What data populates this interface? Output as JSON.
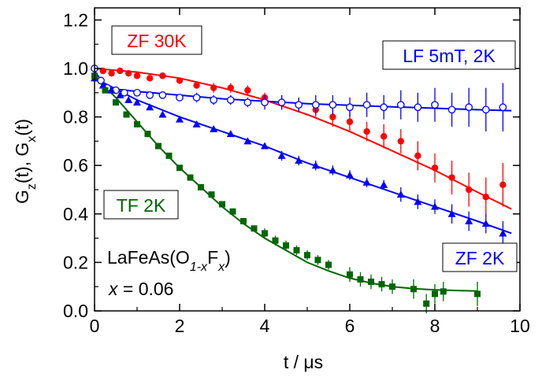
{
  "chart_data": {
    "type": "scatter",
    "xlabel": "t / μs",
    "ylabel": "G_z(t), G_x(t)",
    "xlim": [
      0,
      10
    ],
    "ylim": [
      0,
      1.25
    ],
    "x_ticks": [
      0,
      2,
      4,
      6,
      8,
      10
    ],
    "y_ticks": [
      0.0,
      0.2,
      0.4,
      0.6,
      0.8,
      1.0,
      1.2
    ],
    "x_tick_labels": [
      "0",
      "2",
      "4",
      "6",
      "8",
      "10"
    ],
    "y_tick_labels": [
      "0.0",
      "0.2",
      "0.4",
      "0.6",
      "0.8",
      "1.0",
      "1.2"
    ],
    "grid": false,
    "annotation": {
      "compound_line1": "LaFeAs(O",
      "compound_sub1": "1-x",
      "compound_mid": "F",
      "compound_sub2": "x",
      "compound_end": ")",
      "x_var": "x",
      "x_value": " = 0.06"
    },
    "series": [
      {
        "name": "ZF 30K",
        "color": "#ff0000",
        "marker": "circle-filled",
        "x": [
          0.0,
          0.2,
          0.4,
          0.6,
          0.8,
          1.0,
          1.3,
          1.6,
          2.0,
          2.4,
          2.8,
          3.2,
          3.6,
          4.0,
          4.4,
          4.8,
          5.2,
          5.6,
          6.0,
          6.4,
          6.8,
          7.2,
          7.6,
          8.0,
          8.4,
          8.8,
          9.2,
          9.6
        ],
        "y": [
          1.0,
          0.99,
          0.98,
          0.99,
          0.98,
          0.97,
          0.96,
          0.97,
          0.95,
          0.93,
          0.92,
          0.92,
          0.91,
          0.88,
          0.86,
          0.85,
          0.83,
          0.8,
          0.78,
          0.74,
          0.72,
          0.7,
          0.64,
          0.59,
          0.55,
          0.5,
          0.47,
          0.52
        ],
        "err": [
          0.01,
          0.01,
          0.01,
          0.01,
          0.01,
          0.01,
          0.01,
          0.01,
          0.01,
          0.01,
          0.02,
          0.02,
          0.02,
          0.02,
          0.03,
          0.03,
          0.03,
          0.04,
          0.04,
          0.04,
          0.05,
          0.05,
          0.06,
          0.06,
          0.07,
          0.07,
          0.08,
          0.09
        ],
        "fit": {
          "x": [
            0.0,
            1.0,
            2.0,
            3.0,
            4.0,
            5.0,
            6.0,
            7.0,
            8.0,
            9.0,
            9.8
          ],
          "y": [
            1.0,
            0.985,
            0.96,
            0.92,
            0.87,
            0.81,
            0.74,
            0.66,
            0.58,
            0.49,
            0.42
          ]
        }
      },
      {
        "name": "LF 5mT, 2K",
        "color": "#0000ff",
        "marker": "circle-open",
        "x": [
          0.0,
          0.15,
          0.3,
          0.5,
          0.7,
          1.0,
          1.3,
          1.6,
          2.0,
          2.4,
          2.8,
          3.2,
          3.6,
          4.0,
          4.4,
          4.8,
          5.2,
          5.6,
          6.0,
          6.4,
          6.8,
          7.2,
          7.6,
          8.0,
          8.4,
          8.8,
          9.2,
          9.6
        ],
        "y": [
          1.0,
          0.95,
          0.92,
          0.91,
          0.9,
          0.9,
          0.89,
          0.89,
          0.88,
          0.88,
          0.87,
          0.87,
          0.86,
          0.86,
          0.86,
          0.85,
          0.85,
          0.85,
          0.84,
          0.85,
          0.84,
          0.85,
          0.84,
          0.85,
          0.83,
          0.84,
          0.83,
          0.84
        ],
        "err": [
          0.01,
          0.01,
          0.01,
          0.01,
          0.01,
          0.01,
          0.01,
          0.01,
          0.01,
          0.02,
          0.02,
          0.02,
          0.02,
          0.03,
          0.03,
          0.03,
          0.04,
          0.04,
          0.04,
          0.05,
          0.05,
          0.06,
          0.06,
          0.07,
          0.07,
          0.08,
          0.09,
          0.1
        ],
        "fit": {
          "x": [
            0.0,
            0.2,
            0.5,
            1.0,
            2.0,
            3.0,
            4.0,
            5.0,
            6.0,
            7.0,
            8.0,
            9.0,
            9.8
          ],
          "y": [
            0.99,
            0.94,
            0.915,
            0.905,
            0.89,
            0.875,
            0.865,
            0.855,
            0.848,
            0.842,
            0.836,
            0.83,
            0.826
          ]
        }
      },
      {
        "name": "ZF 2K",
        "color": "#0000ff",
        "marker": "triangle-filled",
        "x": [
          0.0,
          0.2,
          0.4,
          0.6,
          0.8,
          1.0,
          1.3,
          1.6,
          2.0,
          2.4,
          2.8,
          3.2,
          3.6,
          4.0,
          4.4,
          4.8,
          5.2,
          5.6,
          6.0,
          6.4,
          6.8,
          7.2,
          7.6,
          8.0,
          8.4,
          8.8,
          9.2,
          9.6
        ],
        "y": [
          0.96,
          0.93,
          0.91,
          0.89,
          0.87,
          0.86,
          0.84,
          0.81,
          0.79,
          0.77,
          0.75,
          0.73,
          0.7,
          0.68,
          0.64,
          0.62,
          0.6,
          0.58,
          0.56,
          0.53,
          0.52,
          0.48,
          0.45,
          0.43,
          0.4,
          0.37,
          0.36,
          0.32
        ],
        "err": [
          0.01,
          0.01,
          0.01,
          0.01,
          0.01,
          0.01,
          0.01,
          0.01,
          0.01,
          0.01,
          0.01,
          0.01,
          0.01,
          0.01,
          0.02,
          0.02,
          0.02,
          0.02,
          0.02,
          0.02,
          0.02,
          0.03,
          0.03,
          0.03,
          0.04,
          0.04,
          0.04,
          0.05
        ],
        "fit": {
          "x": [
            0.0,
            1.0,
            2.0,
            3.0,
            4.0,
            5.0,
            6.0,
            7.0,
            8.0,
            9.0,
            9.8
          ],
          "y": [
            0.96,
            0.87,
            0.8,
            0.74,
            0.68,
            0.61,
            0.55,
            0.49,
            0.43,
            0.37,
            0.32
          ]
        }
      },
      {
        "name": "TF 2K",
        "color": "#006600",
        "marker": "square-filled",
        "x": [
          0.0,
          0.25,
          0.5,
          0.75,
          1.0,
          1.25,
          1.5,
          1.75,
          2.0,
          2.25,
          2.5,
          2.75,
          3.0,
          3.25,
          3.5,
          3.75,
          4.0,
          4.25,
          4.5,
          4.75,
          5.0,
          5.25,
          5.5,
          6.0,
          6.25,
          6.5,
          6.75,
          7.0,
          7.5,
          7.8,
          8.0,
          8.2,
          9.0
        ],
        "y": [
          0.97,
          0.91,
          0.86,
          0.81,
          0.77,
          0.73,
          0.68,
          0.64,
          0.59,
          0.55,
          0.51,
          0.48,
          0.44,
          0.41,
          0.37,
          0.34,
          0.32,
          0.29,
          0.27,
          0.25,
          0.23,
          0.21,
          0.19,
          0.15,
          0.13,
          0.12,
          0.11,
          0.1,
          0.09,
          0.03,
          0.07,
          0.08,
          0.07
        ],
        "err": [
          0.01,
          0.01,
          0.01,
          0.01,
          0.01,
          0.01,
          0.01,
          0.01,
          0.01,
          0.01,
          0.01,
          0.01,
          0.01,
          0.01,
          0.01,
          0.01,
          0.02,
          0.02,
          0.02,
          0.02,
          0.02,
          0.02,
          0.02,
          0.03,
          0.03,
          0.03,
          0.03,
          0.03,
          0.04,
          0.04,
          0.04,
          0.04,
          0.05
        ],
        "fit": {
          "x": [
            0.0,
            0.5,
            1.0,
            1.5,
            2.0,
            2.5,
            3.0,
            3.5,
            4.0,
            4.5,
            5.0,
            5.5,
            6.0,
            6.5,
            7.0,
            7.5,
            8.0,
            8.5,
            9.0
          ],
          "y": [
            0.97,
            0.88,
            0.78,
            0.68,
            0.59,
            0.51,
            0.43,
            0.36,
            0.3,
            0.25,
            0.2,
            0.165,
            0.135,
            0.115,
            0.1,
            0.092,
            0.087,
            0.084,
            0.082
          ]
        }
      }
    ],
    "legend": {
      "zf30k": {
        "label": "ZF 30K",
        "color": "#ff0000"
      },
      "lf2k": {
        "label": "LF 5mT, 2K",
        "color": "#0000ff"
      },
      "tf2k": {
        "label": "TF 2K",
        "color": "#006600"
      },
      "zf2k": {
        "label": "ZF 2K",
        "color": "#0000ff"
      }
    }
  }
}
